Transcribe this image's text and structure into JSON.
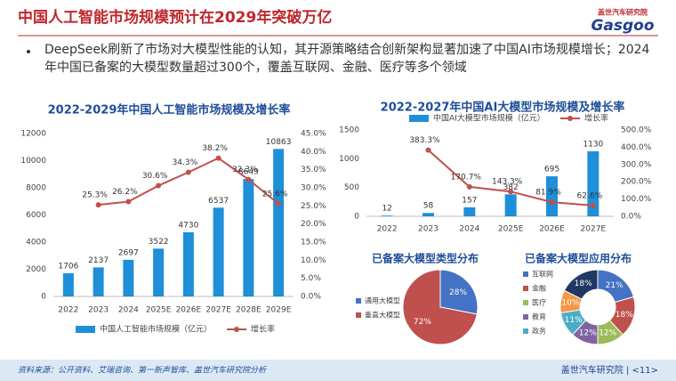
{
  "header": {
    "title": "中国人工智能市场规模预计在2029年突破万亿",
    "logo_cn": "盖世汽车研究院",
    "logo_en": "Gasgoo"
  },
  "bullet": "DeepSeek刷新了市场对大模型性能的认知，其开源策略结合创新架构显著加速了中国AI市场规模增长；2024年中国已备案的大模型数量超过300个，覆盖互联网、金融、医疗等多个领域",
  "footer": {
    "source": "资料来源：公开资料、艾瑞咨询、第一新声智库、盖世汽车研究院分析",
    "page": "盖世汽车研究院 | <11>"
  },
  "chart_data": [
    {
      "type": "combo",
      "title": "2022-2029年中国人工智能市场规模及增长率",
      "categories": [
        "2022",
        "2023",
        "2024",
        "2025E",
        "2026E",
        "2027E",
        "2028E",
        "2029E"
      ],
      "series": [
        {
          "name": "中国人工智能市场规模（亿元）",
          "type": "bar",
          "color": "#1f8fd8",
          "values": [
            1706,
            2137,
            2697,
            3522,
            4730,
            6537,
            8649,
            10863
          ]
        },
        {
          "name": "增长率",
          "type": "line",
          "axis": "y2",
          "color": "#c0504d",
          "values": [
            null,
            25.3,
            26.2,
            30.6,
            34.3,
            38.2,
            32.3,
            25.6
          ],
          "value_labels": [
            null,
            "25.3%",
            "26.2%",
            "30.6%",
            "34.3%",
            "38.2%",
            "32.3%",
            "25.6%"
          ]
        }
      ],
      "ylim": [
        0,
        12000
      ],
      "yticks": [
        0,
        2000,
        4000,
        6000,
        8000,
        10000,
        12000
      ],
      "y2lim": [
        0,
        45
      ],
      "y2ticks": [
        {
          "value": 0,
          "label": "0.0%"
        },
        {
          "value": 5,
          "label": "5.0%"
        },
        {
          "value": 10,
          "label": "10.0%"
        },
        {
          "value": 15,
          "label": "15.0%"
        },
        {
          "value": 20,
          "label": "20.0%"
        },
        {
          "value": 25,
          "label": "25.0%"
        },
        {
          "value": 30,
          "label": "30.0%"
        },
        {
          "value": 35,
          "label": "35.0%"
        },
        {
          "value": 40,
          "label": "40.0%"
        },
        {
          "value": 45,
          "label": "45.0%"
        }
      ],
      "legend": "bottom"
    },
    {
      "type": "combo",
      "title": "2022-2027年中国AI大模型市场规模及增长率",
      "categories": [
        "2022",
        "2023",
        "2024",
        "2025E",
        "2026E",
        "2027E"
      ],
      "series": [
        {
          "name": "中国AI大模型市场规模（亿元）",
          "type": "bar",
          "color": "#1f8fd8",
          "values": [
            12,
            58,
            157,
            382,
            695,
            1130
          ]
        },
        {
          "name": "增长率",
          "type": "line",
          "axis": "y2",
          "color": "#c0504d",
          "values": [
            null,
            383.3,
            170.7,
            143.3,
            81.9,
            62.6
          ],
          "value_labels": [
            null,
            "383.3%",
            "170.7%",
            "143.3%",
            "81.9%",
            "62.6%"
          ]
        }
      ],
      "ylim": [
        0,
        1500
      ],
      "yticks": [
        0,
        500,
        1000,
        1500
      ],
      "y2lim": [
        0,
        500
      ],
      "y2ticks": [
        {
          "value": 0,
          "label": "0.0%"
        },
        {
          "value": 100,
          "label": "100.0%"
        },
        {
          "value": 200,
          "label": "200.0%"
        },
        {
          "value": 300,
          "label": "300.0%"
        },
        {
          "value": 400,
          "label": "400.0%"
        },
        {
          "value": 500,
          "label": "500.0%"
        }
      ],
      "legend": "top"
    },
    {
      "type": "pie",
      "title": "已备案大模型类型分布",
      "categories": [
        "通用大模型",
        "垂直大模型"
      ],
      "values": [
        28,
        72
      ],
      "value_labels": [
        "28%",
        "72%"
      ],
      "colors": [
        "#4472c4",
        "#c0504d"
      ]
    },
    {
      "type": "donut",
      "title": "已备案大模型应用分布",
      "categories": [
        "互联网",
        "金融",
        "医疗",
        "教育",
        "政务",
        null,
        null
      ],
      "values": [
        21,
        18,
        12,
        12,
        11,
        10,
        18
      ],
      "value_labels": [
        "21%",
        "18%",
        "12%",
        "12%",
        "11%",
        "10%",
        "18%"
      ],
      "colors": [
        "#4472c4",
        "#c0504d",
        "#9bbb59",
        "#8064a2",
        "#4bacc6",
        "#f79646",
        "#1f3864"
      ]
    }
  ]
}
